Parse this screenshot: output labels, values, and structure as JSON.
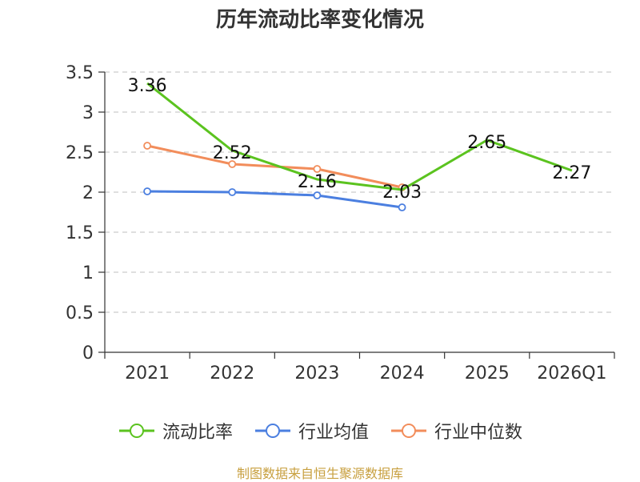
{
  "chart_data": {
    "type": "line",
    "title": "历年流动比率变化情况",
    "categories": [
      "2021",
      "2022",
      "2023",
      "2024",
      "2025",
      "2026Q1"
    ],
    "ylim": [
      0,
      3.5
    ],
    "yticks": [
      "0",
      "0.5",
      "1",
      "1.5",
      "2",
      "2.5",
      "3",
      "3.5"
    ],
    "grid": true,
    "legend_position": "bottom-center",
    "series": [
      {
        "name": "流动比率",
        "color": "#5bc31f",
        "values": [
          3.36,
          2.52,
          2.16,
          2.03,
          2.65,
          2.27
        ],
        "labels": [
          "3.36",
          "2.52",
          "2.16",
          "2.03",
          "2.65",
          "2.27"
        ],
        "show_labels": true
      },
      {
        "name": "行业均值",
        "color": "#4b7fe0",
        "values": [
          2.01,
          2.0,
          1.96,
          1.81,
          null,
          null
        ],
        "show_labels": false
      },
      {
        "name": "行业中位数",
        "color": "#f28d5b",
        "values": [
          2.58,
          2.35,
          2.29,
          2.06,
          null,
          null
        ],
        "show_labels": false
      }
    ]
  },
  "footer": {
    "source": "制图数据来自恒生聚源数据库"
  }
}
